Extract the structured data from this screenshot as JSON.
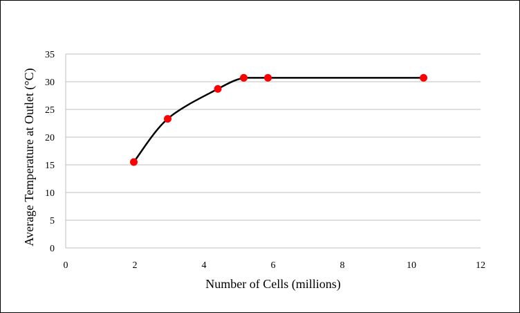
{
  "chart_data": {
    "type": "scatter",
    "title": "",
    "xlabel": "Number of Cells (millions)",
    "ylabel": "Average Temperature at Outlet (°C)",
    "xlim": [
      0,
      12
    ],
    "ylim": [
      0,
      35
    ],
    "xticks": [
      "0",
      "2",
      "4",
      "6",
      "8",
      "10",
      "12"
    ],
    "yticks": [
      "0",
      "5",
      "10",
      "15",
      "20",
      "25",
      "30",
      "35"
    ],
    "grid": "horizontal",
    "line_style": "smooth",
    "colors": {
      "line": "#000000",
      "marker": "#ff0000",
      "grid": "#bfbfbf"
    },
    "x": [
      1.97,
      2.95,
      4.4,
      5.15,
      5.85,
      10.35
    ],
    "y": [
      15.5,
      23.3,
      28.7,
      30.7,
      30.7,
      30.7
    ]
  }
}
